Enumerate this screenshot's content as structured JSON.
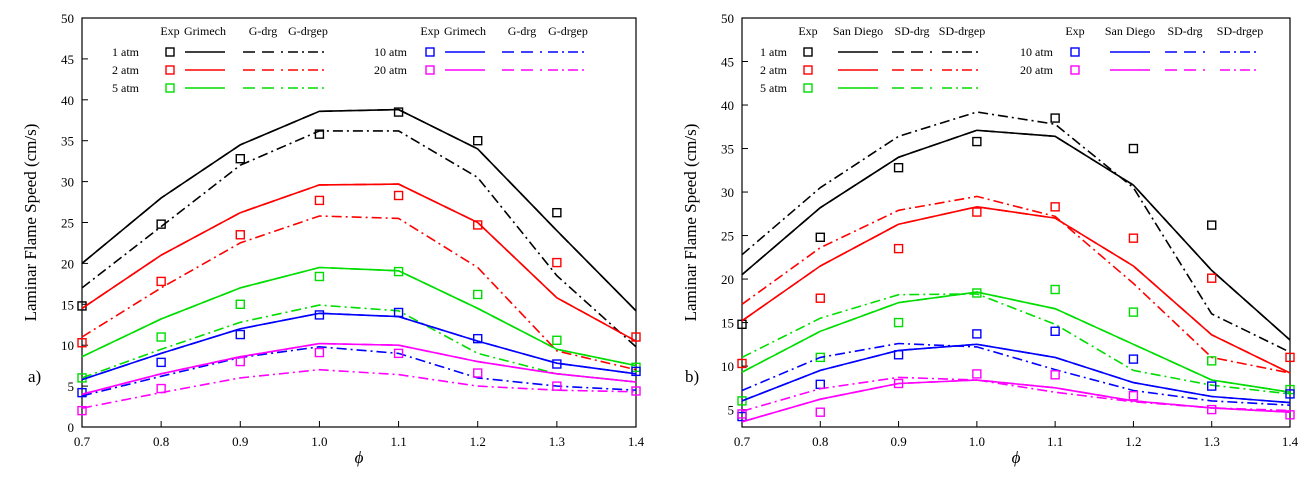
{
  "chart_data": [
    {
      "type": "line",
      "panel_label": "a)",
      "xlabel": "ϕ",
      "ylabel": "Laminar Flame Speed (cm/s)",
      "xlim": [
        0.7,
        1.4
      ],
      "ylim": [
        0,
        50
      ],
      "x_ticks": [
        "0.7",
        "0.8",
        "0.9",
        "1.0",
        "1.1",
        "1.2",
        "1.3",
        "1.4"
      ],
      "y_ticks": [
        "0",
        "5",
        "10",
        "15",
        "20",
        "25",
        "30",
        "35",
        "40",
        "45",
        "50"
      ],
      "legend_header": [
        "Exp",
        "Grimech",
        "G-drg",
        "G-drgep"
      ],
      "legend_header_right": [
        "Exp",
        "Grimech",
        "G-drg",
        "G-drgep"
      ],
      "x": [
        0.7,
        0.8,
        0.9,
        1.0,
        1.1,
        1.2,
        1.3,
        1.4
      ],
      "pressures": [
        {
          "label": "1 atm",
          "color": "#000000",
          "exp": [
            14.8,
            24.8,
            32.8,
            35.8,
            38.5,
            35.0,
            26.2,
            null
          ],
          "full": [
            20.0,
            28.0,
            34.5,
            38.6,
            38.8,
            34.0,
            24.0,
            14.2
          ],
          "drg": [
            20.0,
            28.0,
            34.5,
            38.6,
            38.8,
            34.0,
            24.0,
            14.2
          ],
          "drgep": [
            17.0,
            24.5,
            32.0,
            36.2,
            36.2,
            30.5,
            18.5,
            9.8
          ]
        },
        {
          "label": "2 atm",
          "color": "#ff0000",
          "exp": [
            10.3,
            17.8,
            23.5,
            27.7,
            28.3,
            24.7,
            20.1,
            11.0
          ],
          "full": [
            14.5,
            21.0,
            26.2,
            29.6,
            29.7,
            25.0,
            15.8,
            10.5
          ],
          "drg": [
            14.5,
            21.0,
            26.2,
            29.6,
            29.7,
            25.0,
            15.8,
            10.5
          ],
          "drgep": [
            11.0,
            17.0,
            22.5,
            25.8,
            25.5,
            19.5,
            9.3,
            7.0
          ]
        },
        {
          "label": "5 atm",
          "color": "#00dd00",
          "exp": [
            6.0,
            11.0,
            15.0,
            18.4,
            19.0,
            16.2,
            10.6,
            7.3
          ],
          "full": [
            8.6,
            13.2,
            17.0,
            19.5,
            19.1,
            14.5,
            9.5,
            7.5
          ],
          "drg": [
            8.6,
            13.2,
            17.0,
            19.5,
            19.1,
            14.5,
            9.5,
            7.5
          ],
          "drgep": [
            6.0,
            9.5,
            12.8,
            14.9,
            14.2,
            9.0,
            6.5,
            5.5
          ]
        },
        {
          "label": "10 atm",
          "color": "#0000ff",
          "exp": [
            4.2,
            7.9,
            11.3,
            13.7,
            14.0,
            10.8,
            7.7,
            6.8
          ],
          "full": [
            5.8,
            9.0,
            12.0,
            13.9,
            13.5,
            10.5,
            7.8,
            6.5
          ],
          "drg": [
            5.8,
            9.0,
            12.0,
            13.9,
            13.5,
            10.5,
            7.8,
            6.5
          ],
          "drgep": [
            3.8,
            6.2,
            8.5,
            9.8,
            9.0,
            6.0,
            5.0,
            4.5
          ]
        },
        {
          "label": "20 atm",
          "color": "#ff00ff",
          "exp": [
            2.0,
            4.7,
            8.0,
            9.1,
            9.0,
            6.6,
            5.0,
            4.4
          ],
          "full": [
            4.0,
            6.5,
            8.6,
            10.2,
            10.0,
            8.0,
            6.5,
            5.5
          ],
          "drg": [
            4.0,
            6.5,
            8.6,
            10.2,
            10.0,
            8.0,
            6.5,
            5.5
          ],
          "drgep": [
            2.3,
            4.2,
            6.0,
            7.0,
            6.4,
            5.0,
            4.5,
            4.3
          ]
        }
      ]
    },
    {
      "type": "line",
      "panel_label": "b)",
      "xlabel": "ϕ",
      "ylabel": "Laminar Flame Speed (cm/s)",
      "xlim": [
        0.7,
        1.4
      ],
      "ylim": [
        3,
        50
      ],
      "x_ticks": [
        "0.7",
        "0.8",
        "0.9",
        "1.0",
        "1.1",
        "1.2",
        "1.3",
        "1.4"
      ],
      "y_ticks": [
        "5",
        "10",
        "15",
        "20",
        "25",
        "30",
        "35",
        "40",
        "45",
        "50"
      ],
      "legend_header": [
        "Exp",
        "San Diego",
        "SD-drg",
        "SD-drgep"
      ],
      "legend_header_right": [
        "Exp",
        "San Diego",
        "SD-drg",
        "SD-drgep"
      ],
      "x": [
        0.7,
        0.8,
        0.9,
        1.0,
        1.1,
        1.2,
        1.3,
        1.4
      ],
      "pressures": [
        {
          "label": "1 atm",
          "color": "#000000",
          "exp": [
            14.8,
            24.8,
            32.8,
            35.8,
            38.5,
            35.0,
            26.2,
            null
          ],
          "full": [
            20.5,
            28.2,
            34.0,
            37.1,
            36.4,
            30.8,
            21.0,
            13.0
          ],
          "drg": [
            20.5,
            28.2,
            34.0,
            37.1,
            36.4,
            30.8,
            21.0,
            13.0
          ],
          "drgep": [
            22.8,
            30.5,
            36.4,
            39.2,
            37.8,
            30.5,
            16.0,
            11.6
          ]
        },
        {
          "label": "2 atm",
          "color": "#ff0000",
          "exp": [
            10.3,
            17.8,
            23.5,
            27.7,
            28.3,
            24.7,
            20.1,
            11.0
          ],
          "full": [
            15.2,
            21.5,
            26.3,
            28.3,
            27.0,
            21.5,
            13.6,
            9.2
          ],
          "drg": [
            15.2,
            21.5,
            26.3,
            28.3,
            27.0,
            21.5,
            13.6,
            9.2
          ],
          "drgep": [
            17.1,
            23.6,
            27.9,
            29.5,
            27.2,
            19.5,
            11.0,
            9.2
          ]
        },
        {
          "label": "5 atm",
          "color": "#00dd00",
          "exp": [
            6.0,
            11.0,
            15.0,
            18.4,
            18.8,
            16.2,
            10.6,
            7.3
          ],
          "full": [
            9.3,
            14.0,
            17.3,
            18.5,
            16.6,
            12.5,
            8.4,
            7.0
          ],
          "drg": [
            9.3,
            14.0,
            17.3,
            18.5,
            16.6,
            12.5,
            8.4,
            7.0
          ],
          "drgep": [
            11.0,
            15.5,
            18.2,
            18.3,
            14.8,
            9.5,
            7.8,
            6.8
          ]
        },
        {
          "label": "10 atm",
          "color": "#0000ff",
          "exp": [
            4.2,
            7.9,
            11.3,
            13.7,
            14.0,
            10.8,
            7.7,
            6.8
          ],
          "full": [
            6.0,
            9.5,
            11.8,
            12.5,
            11.0,
            8.1,
            6.5,
            5.8
          ],
          "drg": [
            6.0,
            9.5,
            11.8,
            12.5,
            11.0,
            8.1,
            6.5,
            5.8
          ],
          "drgep": [
            7.2,
            11.0,
            12.6,
            12.2,
            9.6,
            7.2,
            6.0,
            5.5
          ]
        },
        {
          "label": "20 atm",
          "color": "#ff00ff",
          "exp": [
            4.5,
            4.7,
            8.0,
            9.1,
            9.0,
            6.6,
            5.0,
            4.4
          ],
          "full": [
            3.6,
            6.2,
            8.0,
            8.4,
            7.5,
            6.0,
            5.2,
            4.7
          ],
          "drg": [
            3.6,
            6.2,
            8.0,
            8.4,
            7.5,
            6.0,
            5.2,
            4.7
          ],
          "drgep": [
            4.8,
            7.4,
            8.7,
            8.4,
            7.0,
            5.9,
            5.2,
            4.9
          ]
        }
      ]
    }
  ]
}
